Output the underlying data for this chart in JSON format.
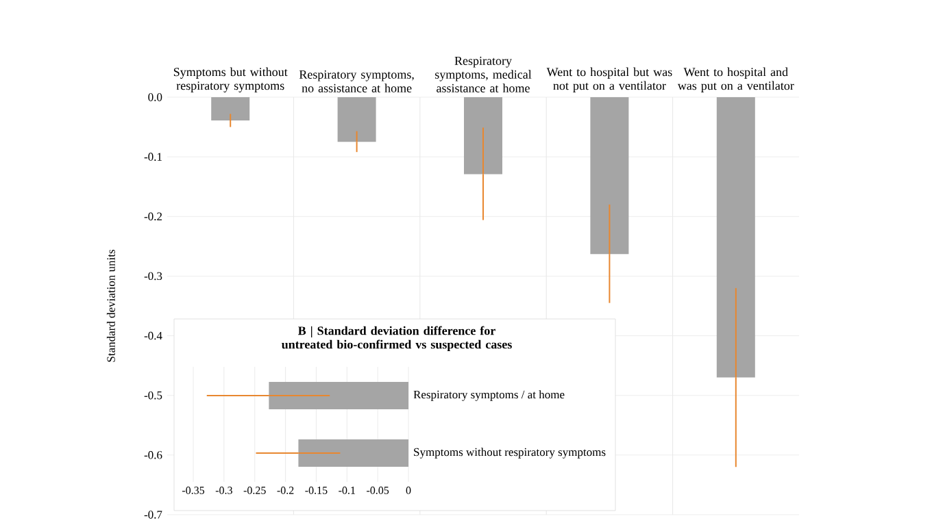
{
  "chart_data": [
    {
      "type": "bar",
      "ylabel": "Standard deviation units",
      "categories": [
        "Symptoms but without respiratory symptoms",
        "Respiratory symptoms, no assistance at home",
        "Respiratory symptoms, medical assistance at home",
        "Went to hospital but was not put on a ventilator",
        "Went to hospital and was put on a ventilator"
      ],
      "values": [
        -0.039,
        -0.075,
        -0.129,
        -0.263,
        -0.47
      ],
      "errors": [
        [
          -0.05,
          -0.028
        ],
        [
          -0.092,
          -0.057
        ],
        [
          -0.206,
          -0.051
        ],
        [
          -0.345,
          -0.18
        ],
        [
          -0.62,
          -0.32
        ]
      ],
      "color": "#a5a5a5",
      "ylim": [
        -0.7,
        0
      ],
      "yticks": [
        {
          "value": 0,
          "label": "0.0"
        },
        -0.1,
        -0.2,
        -0.3,
        -0.4,
        -0.5,
        -0.6,
        -0.7
      ],
      "grid": true
    },
    {
      "type": "bar",
      "orientation": "horizontal",
      "title": "B | Standard deviation difference for untreated bio-confirmed vs suspected cases",
      "categories": [
        "Respiratory symptoms / at home",
        "Symptoms without respiratory symptoms"
      ],
      "values": [
        -0.227,
        -0.179
      ],
      "errors": [
        [
          -0.328,
          -0.128
        ],
        [
          -0.248,
          -0.111
        ]
      ],
      "color": "#a5a5a5",
      "xlim": [
        -0.35,
        0
      ],
      "xticks": [
        -0.35,
        -0.3,
        -0.25,
        -0.2,
        -0.15,
        -0.1,
        -0.05,
        0
      ],
      "grid": true
    }
  ]
}
